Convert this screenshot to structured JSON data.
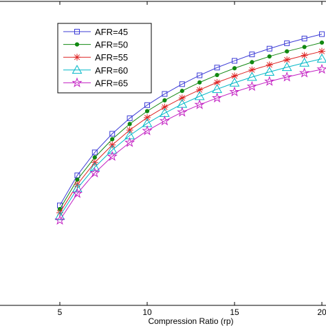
{
  "chart_data": {
    "type": "line",
    "title": "",
    "xlabel": "Compression Ratio (rp)",
    "ylabel": "",
    "xlim": [
      0,
      20
    ],
    "ylim": [
      0.1,
      1.0
    ],
    "x_ticks": [
      5,
      10,
      15,
      20
    ],
    "x_tick_labels": [
      "5",
      "10",
      "15",
      "20"
    ],
    "grid": false,
    "legend_position": "top-left",
    "x": [
      5,
      6,
      7,
      8,
      9,
      10,
      11,
      12,
      13,
      14,
      15,
      16,
      17,
      18,
      19,
      20
    ],
    "series": [
      {
        "name": "AFR=45",
        "color": "#3b3bd6",
        "marker": "square",
        "values": [
          0.396,
          0.485,
          0.553,
          0.608,
          0.654,
          0.693,
          0.726,
          0.755,
          0.781,
          0.804,
          0.824,
          0.843,
          0.86,
          0.876,
          0.89,
          0.903
        ]
      },
      {
        "name": "AFR=50",
        "color": "#118811",
        "marker": "dot",
        "values": [
          0.385,
          0.472,
          0.538,
          0.592,
          0.637,
          0.675,
          0.707,
          0.735,
          0.76,
          0.782,
          0.802,
          0.82,
          0.837,
          0.852,
          0.865,
          0.878
        ]
      },
      {
        "name": "AFR=55",
        "color": "#dd2222",
        "marker": "star",
        "values": [
          0.374,
          0.458,
          0.523,
          0.575,
          0.619,
          0.656,
          0.687,
          0.714,
          0.738,
          0.76,
          0.779,
          0.797,
          0.812,
          0.827,
          0.84,
          0.852
        ]
      },
      {
        "name": "AFR=60",
        "color": "#00b7c7",
        "marker": "triangle",
        "values": [
          0.364,
          0.446,
          0.509,
          0.56,
          0.603,
          0.639,
          0.669,
          0.696,
          0.719,
          0.74,
          0.759,
          0.776,
          0.791,
          0.805,
          0.818,
          0.83
        ]
      },
      {
        "name": "AFR=65",
        "color": "#c21fc2",
        "marker": "pentagram",
        "values": [
          0.352,
          0.431,
          0.492,
          0.541,
          0.582,
          0.617,
          0.646,
          0.672,
          0.694,
          0.714,
          0.732,
          0.748,
          0.763,
          0.776,
          0.788,
          0.799
        ]
      }
    ]
  }
}
